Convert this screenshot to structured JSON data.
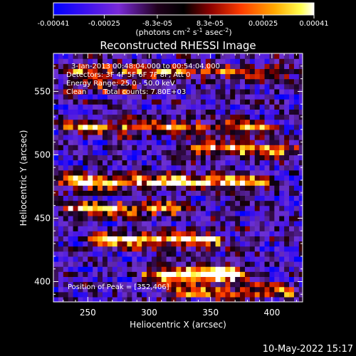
{
  "chart_data": {
    "type": "heatmap",
    "title": "Reconstructed RHESSI Image",
    "xlabel": "Heliocentric X (arcsec)",
    "ylabel": "Heliocentric Y (arcsec)",
    "xlim": [
      222,
      425
    ],
    "ylim": [
      384,
      580
    ],
    "xticks": [
      250,
      300,
      350,
      400
    ],
    "yticks": [
      400,
      450,
      500,
      550
    ],
    "grid": false,
    "colorbar": {
      "label": "(photons cm",
      "label_sup1": "-2",
      "label_mid1": " s",
      "label_sup2": "-1",
      "label_mid2": " asec",
      "label_sup3": "-2",
      "label_end": ")",
      "range": [
        -0.00041,
        0.00041
      ],
      "ticks": [
        {
          "value": -0.00041,
          "label": "-0.00041"
        },
        {
          "value": -0.00025,
          "label": "-0.00025"
        },
        {
          "value": -8.3e-05,
          "label": "-8.3e-05"
        },
        {
          "value": 8.3e-05,
          "label": "8.3e-05"
        },
        {
          "value": 0.00025,
          "label": "0.00025"
        },
        {
          "value": 0.00041,
          "label": "0.00041"
        }
      ],
      "colormap": [
        "#0000ff",
        "#7a2ad8",
        "#1a0018",
        "#000000",
        "#8a0000",
        "#ff3c00",
        "#ffaa00",
        "#ffff40",
        "#ffffff"
      ]
    },
    "annotations": {
      "time_range": "3-Jan-2013 00:48:04.000 to 00:54:04.000",
      "detectors": "Detectors: 3F 4F 5F 6F 7F 8F, Att 0",
      "energy": "Energy Range: 25.0 - 50.0 keV",
      "algorithm": "Clean",
      "counts": "Total counts: 7.80E+03",
      "peak_label": "Position of Peak = [352,406]"
    },
    "peak": {
      "x": 352,
      "y": 406
    },
    "bright_bands": [
      {
        "y": 566,
        "x_from": 230,
        "x_to": 420,
        "strength": 0.55
      },
      {
        "y": 553,
        "x_from": 230,
        "x_to": 300,
        "strength": 0.35
      },
      {
        "y": 522,
        "x_from": 230,
        "x_to": 400,
        "strength": 0.6
      },
      {
        "y": 505,
        "x_from": 330,
        "x_to": 420,
        "strength": 0.75
      },
      {
        "y": 479,
        "x_from": 228,
        "x_to": 395,
        "strength": 0.9
      },
      {
        "y": 458,
        "x_from": 228,
        "x_to": 330,
        "strength": 0.7
      },
      {
        "y": 433,
        "x_from": 250,
        "x_to": 360,
        "strength": 0.85
      },
      {
        "y": 406,
        "x_from": 300,
        "x_to": 380,
        "strength": 1.0
      },
      {
        "y": 392,
        "x_from": 310,
        "x_to": 420,
        "strength": 0.6
      }
    ]
  },
  "footer": {
    "date": "10-May-2022 15:17"
  },
  "colors": {
    "background": "#000000",
    "text": "#ffffff"
  }
}
